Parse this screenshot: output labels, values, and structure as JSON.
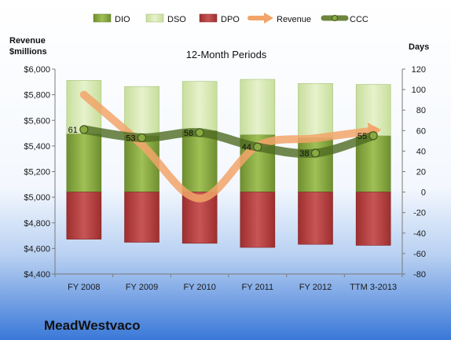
{
  "chart_data": {
    "type": "bar",
    "subtitle": "12-Month Periods",
    "company": "MeadWestvaco",
    "left_axis_title_line1": "Revenue",
    "left_axis_title_line2": "$millions",
    "right_axis_title": "Days",
    "categories": [
      "FY 2008",
      "FY 2009",
      "FY 2010",
      "FY 2011",
      "FY 2012",
      "TTM 3-2013"
    ],
    "left_ylim": [
      4400,
      6000
    ],
    "left_ticks": [
      "$4,400",
      "$4,600",
      "$4,800",
      "$5,000",
      "$5,200",
      "$5,400",
      "$5,600",
      "$5,800",
      "$6,000"
    ],
    "left_tick_values": [
      4400,
      4600,
      4800,
      5000,
      5200,
      5400,
      5600,
      5800,
      6000
    ],
    "right_ylim": [
      -80,
      120
    ],
    "right_ticks": [
      "-80",
      "-60",
      "-40",
      "-20",
      "0",
      "20",
      "40",
      "60",
      "80",
      "100",
      "120"
    ],
    "right_tick_values": [
      -80,
      -60,
      -40,
      -20,
      0,
      20,
      40,
      60,
      80,
      100,
      120
    ],
    "grid": false,
    "legend_position": "top",
    "legend": [
      "DIO",
      "DSO",
      "DPO",
      "Revenue",
      "CCC"
    ],
    "series": [
      {
        "name": "DIO",
        "axis": "right",
        "kind": "stacked-bar",
        "color": "#7f9e3a",
        "values": [
          57,
          55,
          60,
          56,
          53,
          55
        ]
      },
      {
        "name": "DSO",
        "axis": "right",
        "kind": "stacked-bar",
        "color": "#d6e8b0",
        "values": [
          52,
          48,
          48,
          54,
          53,
          50
        ]
      },
      {
        "name": "DPO",
        "axis": "right",
        "kind": "negative-bar",
        "color": "#b53a3a",
        "values": [
          -46,
          -49,
          -50,
          -54,
          -51,
          -52
        ]
      },
      {
        "name": "Revenue",
        "axis": "left",
        "kind": "line",
        "color": "#f0a060",
        "values": [
          5800,
          5410,
          4990,
          5400,
          5460,
          5520
        ]
      },
      {
        "name": "CCC",
        "axis": "right",
        "kind": "line",
        "color": "#556b2f",
        "values": [
          61,
          53,
          58,
          44,
          38,
          55
        ]
      }
    ],
    "ccc_labels": [
      "61",
      "53",
      "58",
      "44",
      "38",
      "55"
    ],
    "colors": {
      "background_top": "#ffffff",
      "background_bottom": "#3a78d8",
      "dio": "#8aaa44",
      "dso": "#dcebbb",
      "dpo": "#b84444",
      "revenue": "#f2a46a",
      "ccc": "#5e7a2a"
    }
  }
}
